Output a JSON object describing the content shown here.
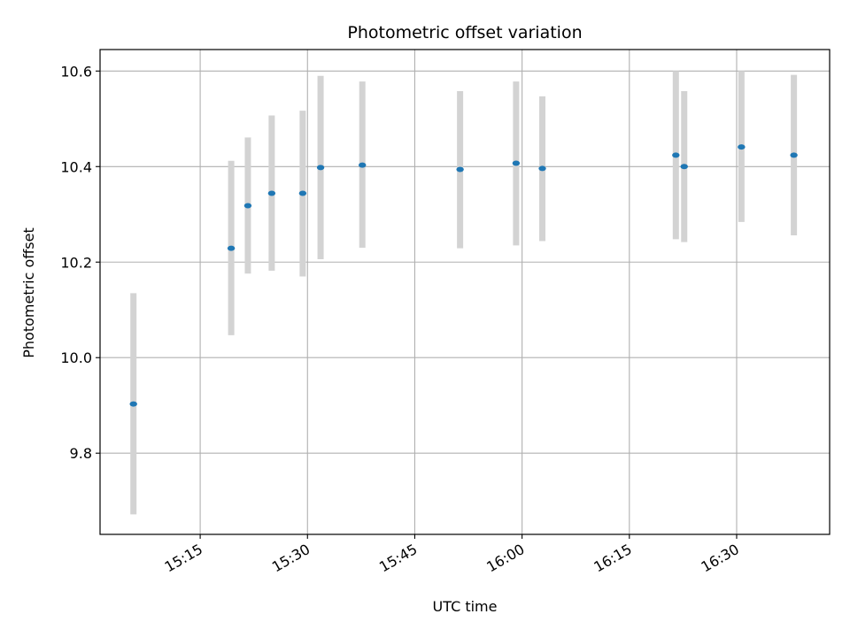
{
  "chart_data": {
    "type": "scatter",
    "title": "Photometric offset variation",
    "xlabel": "UTC time",
    "ylabel": "Photometric offset",
    "xlim": [
      "15:01",
      "16:43"
    ],
    "ylim": [
      9.63,
      10.645
    ],
    "x_ticks": [
      "15:15",
      "15:30",
      "15:45",
      "16:00",
      "16:15",
      "16:30"
    ],
    "y_ticks": [
      "9.8",
      "10.0",
      "10.2",
      "10.4",
      "10.6"
    ],
    "grid": true,
    "colors": {
      "marker": "#1f77b4",
      "errorbar": "#d3d3d3",
      "grid": "#b0b0b0",
      "axes": "#000000"
    },
    "points": [
      {
        "time": "15:05:40",
        "value": 9.903,
        "low": 9.672,
        "high": 10.135
      },
      {
        "time": "15:19:20",
        "value": 10.229,
        "low": 10.047,
        "high": 10.412
      },
      {
        "time": "15:21:40",
        "value": 10.318,
        "low": 10.176,
        "high": 10.461
      },
      {
        "time": "15:25:00",
        "value": 10.344,
        "low": 10.182,
        "high": 10.507
      },
      {
        "time": "15:29:20",
        "value": 10.344,
        "low": 10.17,
        "high": 10.517
      },
      {
        "time": "15:31:50",
        "value": 10.398,
        "low": 10.206,
        "high": 10.59
      },
      {
        "time": "15:37:40",
        "value": 10.403,
        "low": 10.23,
        "high": 10.578
      },
      {
        "time": "15:51:20",
        "value": 10.394,
        "low": 10.229,
        "high": 10.558
      },
      {
        "time": "15:59:10",
        "value": 10.407,
        "low": 10.235,
        "high": 10.578
      },
      {
        "time": "16:02:50",
        "value": 10.396,
        "low": 10.244,
        "high": 10.547
      },
      {
        "time": "16:21:30",
        "value": 10.424,
        "low": 10.248,
        "high": 10.6
      },
      {
        "time": "16:22:40",
        "value": 10.4,
        "low": 10.242,
        "high": 10.558
      },
      {
        "time": "16:30:40",
        "value": 10.441,
        "low": 10.284,
        "high": 10.6
      },
      {
        "time": "16:38:00",
        "value": 10.424,
        "low": 10.256,
        "high": 10.592
      }
    ]
  }
}
